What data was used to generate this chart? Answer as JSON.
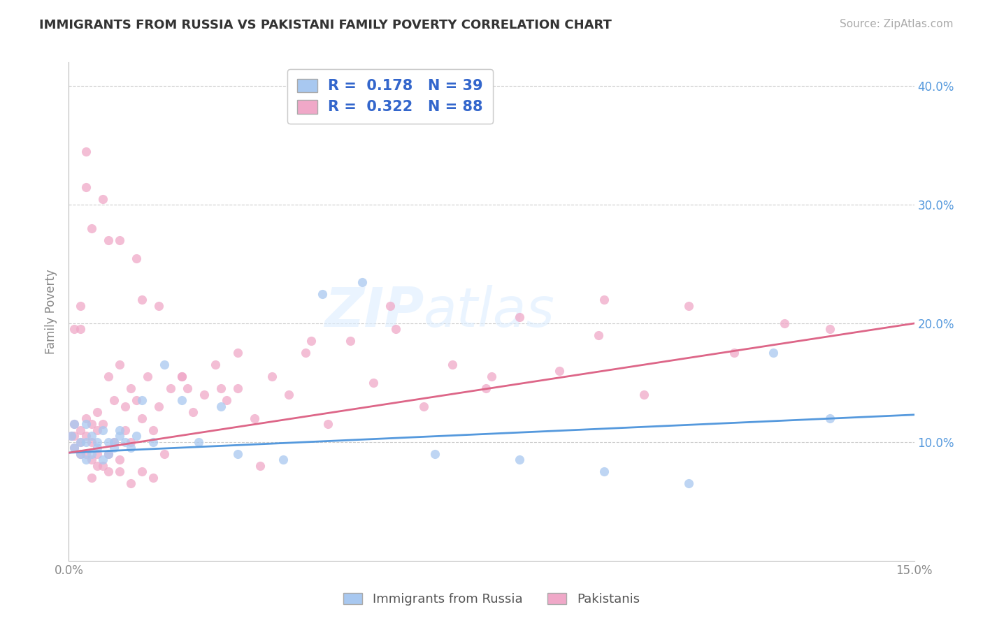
{
  "title": "IMMIGRANTS FROM RUSSIA VS PAKISTANI FAMILY POVERTY CORRELATION CHART",
  "source": "Source: ZipAtlas.com",
  "ylabel": "Family Poverty",
  "legend_label1": "Immigrants from Russia",
  "legend_label2": "Pakistanis",
  "r1": 0.178,
  "n1": 39,
  "r2": 0.322,
  "n2": 88,
  "color1": "#a8c8f0",
  "color2": "#f0a8c8",
  "line_color1": "#5599dd",
  "line_color2": "#dd6688",
  "x_min": 0.0,
  "x_max": 0.15,
  "y_min": 0.0,
  "y_max": 0.42,
  "right_axis_color": "#5599dd",
  "watermark": "ZIPatlas",
  "background_color": "#ffffff",
  "grid_color": "#cccccc",
  "title_color": "#333333",
  "russia_scatter_x": [
    0.0005,
    0.001,
    0.001,
    0.002,
    0.002,
    0.003,
    0.003,
    0.003,
    0.004,
    0.004,
    0.005,
    0.005,
    0.006,
    0.006,
    0.007,
    0.007,
    0.008,
    0.008,
    0.009,
    0.009,
    0.01,
    0.011,
    0.012,
    0.013,
    0.015,
    0.017,
    0.02,
    0.023,
    0.027,
    0.03,
    0.038,
    0.045,
    0.052,
    0.065,
    0.08,
    0.095,
    0.11,
    0.125,
    0.135
  ],
  "russia_scatter_y": [
    0.105,
    0.095,
    0.115,
    0.09,
    0.1,
    0.085,
    0.1,
    0.115,
    0.09,
    0.105,
    0.095,
    0.1,
    0.085,
    0.11,
    0.09,
    0.1,
    0.1,
    0.095,
    0.105,
    0.11,
    0.1,
    0.095,
    0.105,
    0.135,
    0.1,
    0.165,
    0.135,
    0.1,
    0.13,
    0.09,
    0.085,
    0.225,
    0.235,
    0.09,
    0.085,
    0.075,
    0.065,
    0.175,
    0.12
  ],
  "pakistan_scatter_x": [
    0.0005,
    0.001,
    0.001,
    0.001,
    0.002,
    0.002,
    0.002,
    0.003,
    0.003,
    0.003,
    0.004,
    0.004,
    0.004,
    0.005,
    0.005,
    0.005,
    0.006,
    0.006,
    0.007,
    0.007,
    0.008,
    0.008,
    0.009,
    0.009,
    0.01,
    0.01,
    0.011,
    0.011,
    0.012,
    0.013,
    0.014,
    0.015,
    0.016,
    0.017,
    0.018,
    0.02,
    0.022,
    0.024,
    0.026,
    0.028,
    0.03,
    0.033,
    0.036,
    0.039,
    0.042,
    0.046,
    0.05,
    0.054,
    0.058,
    0.063,
    0.068,
    0.074,
    0.08,
    0.087,
    0.094,
    0.102,
    0.11,
    0.118,
    0.127,
    0.135,
    0.001,
    0.002,
    0.003,
    0.004,
    0.005,
    0.007,
    0.009,
    0.011,
    0.013,
    0.015,
    0.002,
    0.004,
    0.006,
    0.009,
    0.012,
    0.016,
    0.021,
    0.027,
    0.034,
    0.003,
    0.007,
    0.013,
    0.02,
    0.03,
    0.043,
    0.057,
    0.075,
    0.095
  ],
  "pakistan_scatter_y": [
    0.105,
    0.095,
    0.105,
    0.115,
    0.09,
    0.1,
    0.11,
    0.09,
    0.105,
    0.12,
    0.085,
    0.1,
    0.115,
    0.09,
    0.11,
    0.125,
    0.08,
    0.115,
    0.09,
    0.155,
    0.1,
    0.135,
    0.085,
    0.165,
    0.11,
    0.13,
    0.1,
    0.145,
    0.135,
    0.12,
    0.155,
    0.11,
    0.13,
    0.09,
    0.145,
    0.155,
    0.125,
    0.14,
    0.165,
    0.135,
    0.145,
    0.12,
    0.155,
    0.14,
    0.175,
    0.115,
    0.185,
    0.15,
    0.195,
    0.13,
    0.165,
    0.145,
    0.205,
    0.16,
    0.19,
    0.14,
    0.215,
    0.175,
    0.2,
    0.195,
    0.195,
    0.195,
    0.345,
    0.07,
    0.08,
    0.075,
    0.075,
    0.065,
    0.075,
    0.07,
    0.215,
    0.28,
    0.305,
    0.27,
    0.255,
    0.215,
    0.145,
    0.145,
    0.08,
    0.315,
    0.27,
    0.22,
    0.155,
    0.175,
    0.185,
    0.215,
    0.155,
    0.22
  ]
}
